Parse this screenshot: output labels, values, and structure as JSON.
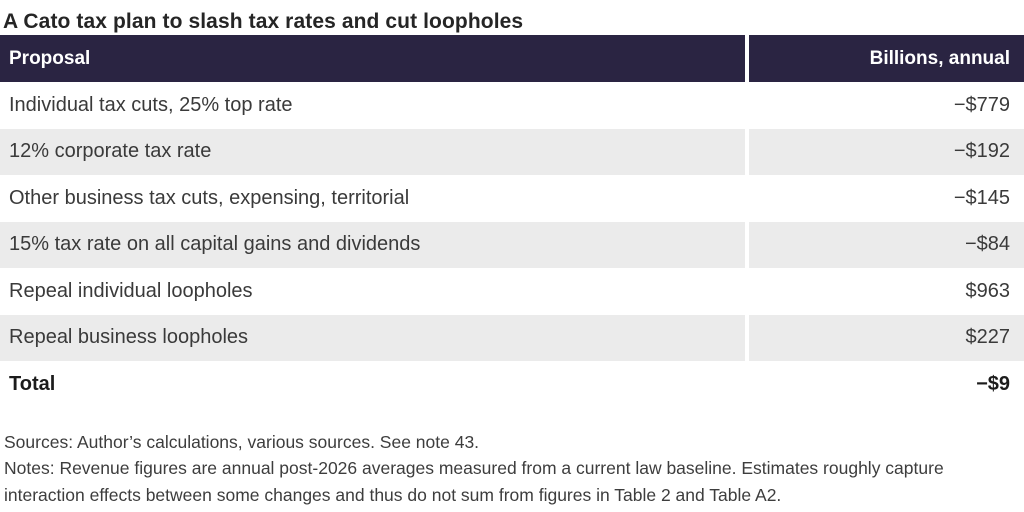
{
  "title": "A Cato tax plan to slash tax rates and cut loopholes",
  "table": {
    "header": {
      "proposal_label": "Proposal",
      "value_label": "Billions, annual"
    },
    "rows": [
      {
        "label": "Individual tax cuts, 25% top rate",
        "value": "−$779"
      },
      {
        "label": "12% corporate tax rate",
        "value": "−$192"
      },
      {
        "label": "Other business tax cuts, expensing, territorial",
        "value": "−$145"
      },
      {
        "label": "15% tax rate on all capital gains and dividends",
        "value": "−$84"
      },
      {
        "label": "Repeal individual loopholes",
        "value": "$963"
      },
      {
        "label": "Repeal business loopholes",
        "value": "$227"
      }
    ],
    "total": {
      "label": "Total",
      "value": "−$9"
    }
  },
  "footer": {
    "sources": "Sources: Author’s calculations, various sources. See note 43.",
    "notes": "Notes: Revenue figures are annual post-2026 averages measured from a current law baseline. Estimates roughly capture interaction effects between some changes and thus do not sum from figures in Table 2 and Table A2."
  },
  "colors": {
    "header_bg": "#2a2442",
    "row_alt_bg": "#ebebeb",
    "body_text": "#3a3a3a"
  }
}
